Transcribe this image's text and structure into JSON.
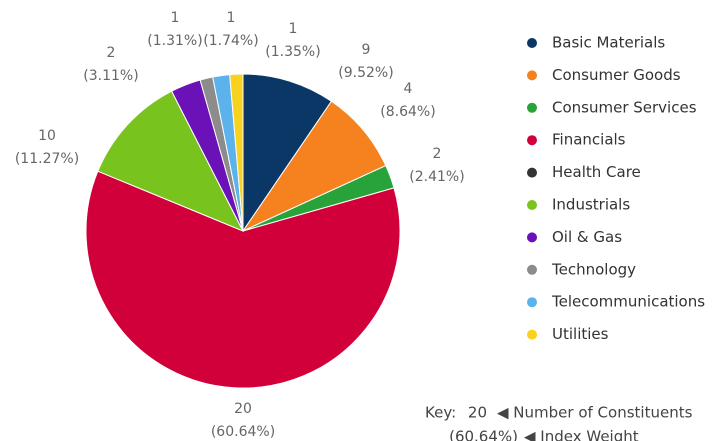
{
  "chart_data": {
    "type": "pie",
    "categories": [
      "Basic Materials",
      "Consumer Goods",
      "Consumer Services",
      "Financials",
      "Health Care",
      "Industrials",
      "Oil & Gas",
      "Technology",
      "Telecommunications",
      "Utilities"
    ],
    "colors": [
      "#0b3766",
      "#f5821f",
      "#27a33a",
      "#d2003a",
      "#333333",
      "#78c31e",
      "#6a12b8",
      "#8c8c8c",
      "#5cb2ea",
      "#f8d21c"
    ],
    "values": [
      9.52,
      8.64,
      2.41,
      60.64,
      null,
      11.27,
      3.11,
      1.31,
      1.74,
      1.35
    ],
    "value_labels": [
      "(9.52%)",
      "(8.64%)",
      "(2.41%)",
      "(60.64%)",
      null,
      "(11.27%)",
      "(3.11%)",
      "(1.31%)",
      "(1.74%)",
      "(1.35%)"
    ],
    "counts": [
      9,
      4,
      2,
      20,
      null,
      10,
      2,
      1,
      1,
      1
    ],
    "legend": "right",
    "key": {
      "title": "Key:",
      "items": [
        {
          "sample": "20",
          "text": "◀ Number of Constituents"
        },
        {
          "sample": "(60.64%)",
          "text": "◀ Index Weight"
        }
      ]
    }
  }
}
